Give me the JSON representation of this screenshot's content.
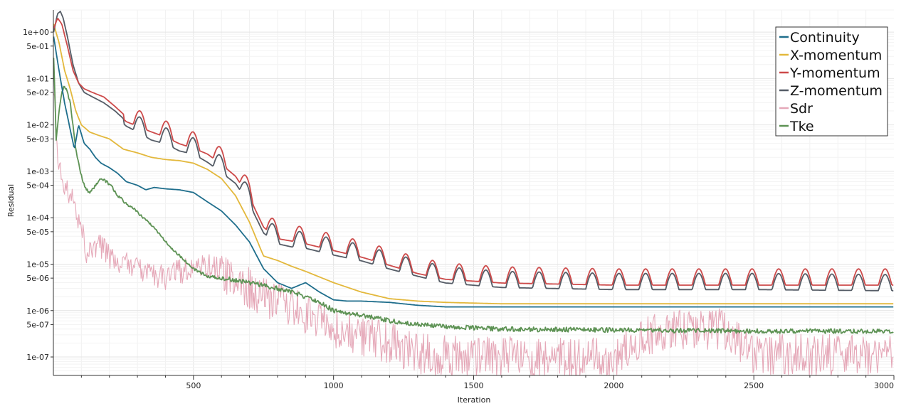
{
  "chart_data": {
    "type": "line",
    "title": "",
    "xlabel": "Iteration",
    "ylabel": "Residual",
    "xlim": [
      0,
      3000
    ],
    "ylim": [
      4e-08,
      3
    ],
    "yscale": "log",
    "grid": true,
    "legend_position": "top-right",
    "x_ticks": [
      500,
      1000,
      1500,
      2000,
      2500,
      3000
    ],
    "x_tick_labels": [
      "500",
      "1000",
      "1500",
      "2000",
      "2500",
      "3000"
    ],
    "y_ticks": [
      1,
      0.5,
      0.1,
      0.05,
      0.01,
      0.005,
      0.001,
      0.0005,
      0.0001,
      5e-05,
      1e-05,
      5e-06,
      1e-06,
      5e-07,
      1e-07
    ],
    "y_tick_labels": [
      "1e+00",
      "5e-01",
      "1e-01",
      "5e-02",
      "1e-02",
      "5e-03",
      "1e-03",
      "5e-04",
      "1e-04",
      "5e-05",
      "1e-05",
      "5e-06",
      "1e-06",
      "5e-07",
      "1e-07"
    ],
    "series": [
      {
        "name": "Continuity",
        "color": "#1f6e8c",
        "noise": 0,
        "wave_amp": 0,
        "wave_period": 0,
        "x": [
          1,
          20,
          40,
          60,
          75,
          90,
          110,
          130,
          150,
          170,
          200,
          230,
          260,
          300,
          330,
          360,
          400,
          450,
          500,
          550,
          600,
          650,
          700,
          750,
          800,
          850,
          900,
          950,
          1000,
          1050,
          1100,
          1200,
          1300,
          1400,
          1600,
          2000,
          2500,
          3000
        ],
        "y": [
          0.8,
          0.15,
          0.03,
          0.008,
          0.003,
          0.01,
          0.004,
          0.003,
          0.002,
          0.0015,
          0.0012,
          0.0009,
          0.0006,
          0.0005,
          0.0004,
          0.00045,
          0.00042,
          0.0004,
          0.00035,
          0.00022,
          0.00014,
          7e-05,
          3e-05,
          8e-06,
          4e-06,
          3e-06,
          4e-06,
          2.5e-06,
          1.7e-06,
          1.6e-06,
          1.6e-06,
          1.5e-06,
          1.3e-06,
          1.2e-06,
          1.2e-06,
          1.2e-06,
          1.2e-06,
          1.2e-06
        ]
      },
      {
        "name": "X-momentum",
        "color": "#e3b83c",
        "noise": 0,
        "wave_amp": 0,
        "wave_period": 0,
        "x": [
          1,
          20,
          40,
          60,
          80,
          100,
          130,
          160,
          200,
          250,
          300,
          350,
          400,
          450,
          500,
          550,
          600,
          650,
          700,
          750,
          800,
          850,
          900,
          1000,
          1100,
          1200,
          1300,
          1400,
          1600,
          2000,
          2500,
          3000
        ],
        "y": [
          1.5,
          0.6,
          0.15,
          0.06,
          0.02,
          0.01,
          0.007,
          0.006,
          0.005,
          0.003,
          0.0025,
          0.002,
          0.0018,
          0.0017,
          0.0015,
          0.0011,
          0.0007,
          0.0003,
          8e-05,
          1.5e-05,
          1.2e-05,
          9e-06,
          7e-06,
          4e-06,
          2.5e-06,
          1.8e-06,
          1.6e-06,
          1.5e-06,
          1.4e-06,
          1.4e-06,
          1.4e-06,
          1.4e-06
        ]
      },
      {
        "name": "Y-momentum",
        "color": "#cd4a4a",
        "noise": 0,
        "wave_amp": 0.35,
        "wave_period": 95,
        "x": [
          1,
          15,
          30,
          50,
          70,
          90,
          110,
          140,
          180,
          220,
          260,
          300,
          350,
          400,
          450,
          500,
          550,
          600,
          650,
          700,
          750,
          800,
          850,
          900,
          1000,
          1100,
          1200,
          1300,
          1400,
          1600,
          2000,
          2500,
          3000
        ],
        "y": [
          1.2,
          2.0,
          1.5,
          0.5,
          0.15,
          0.08,
          0.06,
          0.05,
          0.04,
          0.025,
          0.015,
          0.012,
          0.009,
          0.007,
          0.005,
          0.004,
          0.003,
          0.0018,
          0.001,
          0.00035,
          8e-05,
          4.5e-05,
          4e-05,
          3.5e-05,
          2.5e-05,
          1.8e-05,
          1.2e-05,
          8e-06,
          6e-06,
          5e-06,
          4.5e-06,
          4.5e-06,
          4.5e-06
        ]
      },
      {
        "name": "Z-momentum",
        "color": "#555c66",
        "noise": 0,
        "wave_amp": 0.35,
        "wave_period": 95,
        "x": [
          1,
          15,
          25,
          35,
          50,
          70,
          90,
          110,
          140,
          180,
          220,
          260,
          300,
          350,
          400,
          450,
          500,
          550,
          600,
          650,
          700,
          750,
          800,
          850,
          900,
          1000,
          1100,
          1200,
          1300,
          1400,
          1600,
          2000,
          2500,
          3000
        ],
        "y": [
          1.0,
          2.5,
          2.8,
          2.0,
          0.8,
          0.2,
          0.08,
          0.05,
          0.04,
          0.03,
          0.02,
          0.012,
          0.009,
          0.006,
          0.005,
          0.0035,
          0.003,
          0.002,
          0.0012,
          0.0007,
          0.00025,
          6e-05,
          3.5e-05,
          3e-05,
          2.8e-05,
          2e-05,
          1.5e-05,
          1e-05,
          7e-06,
          5e-06,
          4e-06,
          3.6e-06,
          3.6e-06,
          3.4e-06
        ]
      },
      {
        "name": "Sdr",
        "color": "#e5a8b8",
        "noise": 0.45,
        "wave_amp": 0,
        "wave_period": 0,
        "x": [
          1,
          15,
          30,
          50,
          80,
          110,
          120,
          160,
          200,
          250,
          300,
          350,
          400,
          450,
          500,
          550,
          600,
          650,
          700,
          800,
          900,
          1000,
          1100,
          1200,
          1300,
          1500,
          2000,
          2100,
          2200,
          2400,
          2500,
          3000
        ],
        "y": [
          0.05,
          0.002,
          0.0006,
          0.0004,
          0.00015,
          4e-05,
          1.5e-05,
          3e-05,
          1.5e-05,
          1e-05,
          8e-06,
          6e-06,
          5e-06,
          7e-06,
          8e-06,
          9e-06,
          7e-06,
          5e-06,
          3e-06,
          1.5e-06,
          8e-07,
          4e-07,
          3e-07,
          2e-07,
          1.2e-07,
          1e-07,
          1e-07,
          2.5e-07,
          4e-07,
          4e-07,
          1.2e-07,
          1e-07
        ]
      },
      {
        "name": "Tke",
        "color": "#5d9254",
        "noise": 0.05,
        "wave_amp": 0,
        "wave_period": 0,
        "x": [
          1,
          10,
          20,
          30,
          40,
          50,
          60,
          70,
          80,
          90,
          100,
          110,
          120,
          130,
          150,
          170,
          190,
          210,
          230,
          260,
          290,
          320,
          350,
          400,
          450,
          500,
          550,
          600,
          650,
          700,
          750,
          800,
          850,
          900,
          950,
          1000,
          1100,
          1200,
          1300,
          1400,
          1600,
          2000,
          2500,
          3000
        ],
        "y": [
          0.3,
          0.005,
          0.02,
          0.05,
          0.07,
          0.05,
          0.03,
          0.01,
          0.003,
          0.0015,
          0.0008,
          0.0005,
          0.0004,
          0.00035,
          0.0005,
          0.0007,
          0.0006,
          0.00045,
          0.0003,
          0.0002,
          0.00015,
          0.0001,
          7e-05,
          3e-05,
          1.5e-05,
          8e-06,
          5.5e-06,
          5e-06,
          4.5e-06,
          4e-06,
          3.5e-06,
          3e-06,
          2.5e-06,
          2e-06,
          1.5e-06,
          1e-06,
          8e-07,
          6e-07,
          5e-07,
          4.5e-07,
          4e-07,
          3.8e-07,
          3.6e-07,
          3.6e-07
        ]
      }
    ]
  }
}
